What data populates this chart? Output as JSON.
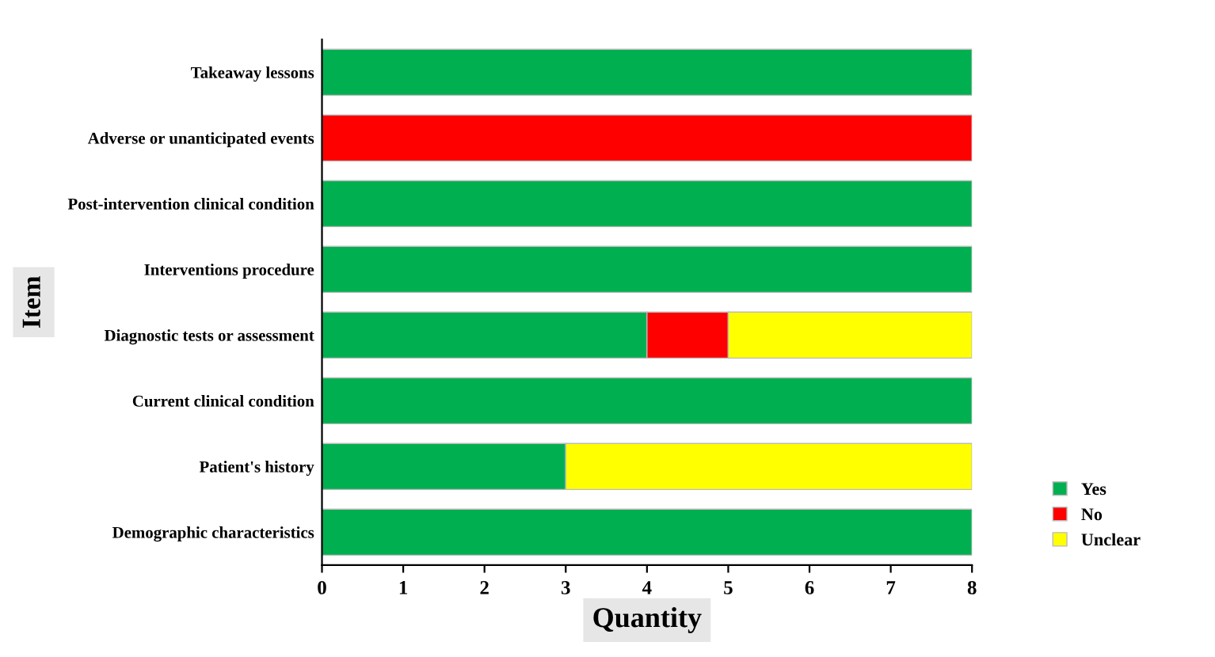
{
  "chart_data": {
    "type": "bar",
    "orientation": "horizontal",
    "stacked": true,
    "categories": [
      "Takeaway lessons",
      "Adverse or unanticipated events",
      "Post-intervention clinical condition",
      "Interventions procedure",
      "Diagnostic tests or assessment",
      "Current clinical condition",
      "Patient's history",
      "Demographic characteristics"
    ],
    "series": [
      {
        "name": "Yes",
        "color": "#00b050",
        "values": [
          8,
          0,
          8,
          8,
          4,
          8,
          3,
          8
        ]
      },
      {
        "name": "No",
        "color": "#ff0000",
        "values": [
          0,
          8,
          0,
          0,
          1,
          0,
          0,
          0
        ]
      },
      {
        "name": "Unclear",
        "color": "#ffff00",
        "values": [
          0,
          0,
          0,
          0,
          3,
          0,
          5,
          0
        ]
      }
    ],
    "xlim": [
      0,
      8
    ],
    "xticks": [
      0,
      1,
      2,
      3,
      4,
      5,
      6,
      7,
      8
    ],
    "xlabel": "Quantity",
    "ylabel": "Item",
    "legend": "bottom right"
  }
}
